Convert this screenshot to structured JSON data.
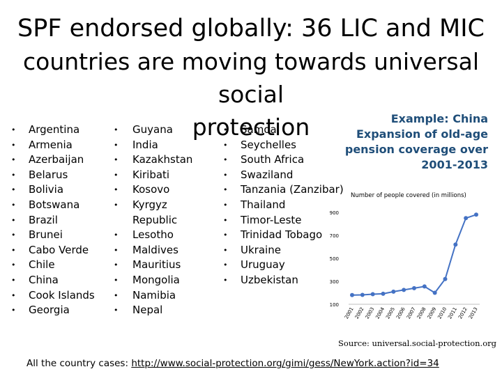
{
  "title_line1": "SPF endorsed globally: 36 LIC and MIC",
  "title_line2": "countries are moving towards universal social",
  "title_line3": "protection",
  "bullet": "•",
  "column1": [
    "Argentina",
    "Armenia",
    "Azerbaijan",
    "Belarus",
    "Bolivia",
    "Botswana",
    "Brazil",
    "Brunei",
    "Cabo Verde",
    "Chile",
    "China",
    "Cook Islands",
    "Georgia"
  ],
  "column2": [
    "Guyana",
    "India",
    "Kazakhstan",
    "Kiribati",
    "Kosovo",
    "Kyrgyz",
    "Republic",
    "Lesotho",
    "Maldives",
    "Mauritius",
    "Mongolia",
    "Namibia",
    "Nepal"
  ],
  "column3": [
    "Samoa",
    "Seychelles",
    "South Africa",
    "Swaziland",
    "Tanzania (Zanzibar)",
    "Thailand",
    "Timor-Leste",
    "Trinidad  Tobago",
    "Ukraine",
    "Uruguay",
    "Uzbekistan"
  ],
  "example": {
    "line1": "Example: China",
    "line2": "Expansion of old-age",
    "line3": "pension coverage over",
    "line4": "2001-2013"
  },
  "chart_data": {
    "type": "line",
    "title": "Number of people covered (in millions)",
    "x": [
      "2001",
      "2002",
      "2003",
      "2004",
      "2005",
      "2006",
      "2007",
      "2008",
      "2009",
      "2010",
      "2011",
      "2012",
      "2013"
    ],
    "series": [
      {
        "values": [
          180,
          182,
          188,
          192,
          210,
          225,
          240,
          255,
          200,
          320,
          620,
          850,
          880
        ]
      }
    ],
    "yticks": [
      100,
      300,
      500,
      700,
      900
    ],
    "ylim": [
      100,
      900
    ],
    "color": "#4472c4",
    "grid": false
  },
  "source": "Source: universal.social-protection.org",
  "all_cases_label": "All the country cases: ",
  "all_cases_link": "http://www.social-protection.org/gimi/gess/NewYork.action?id=34"
}
